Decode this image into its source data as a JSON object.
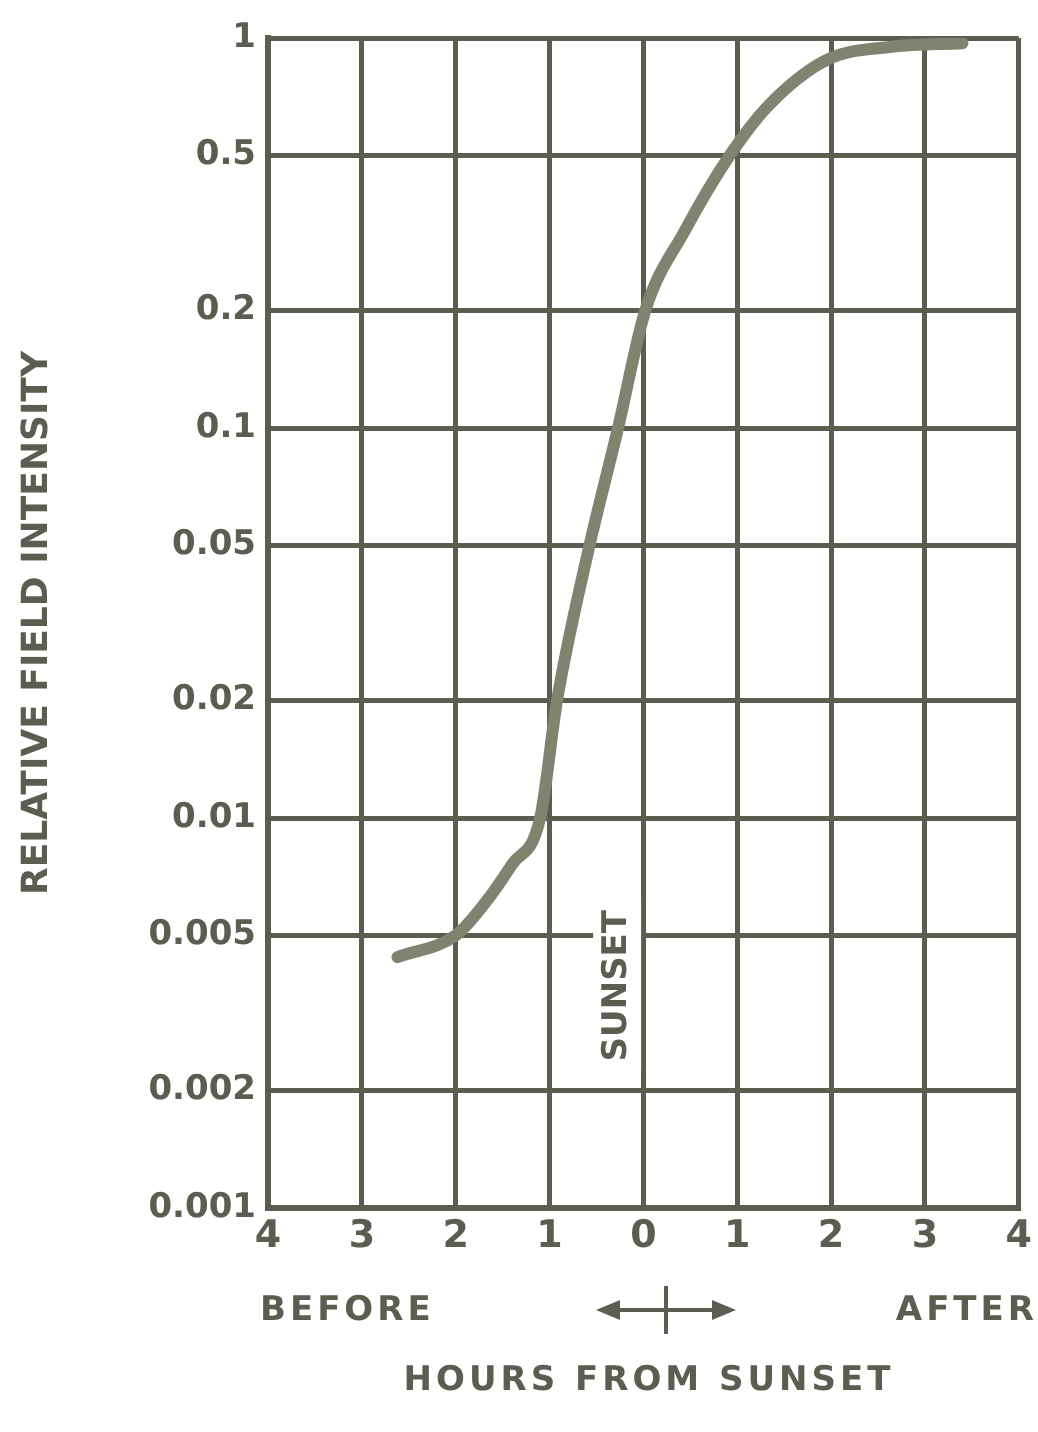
{
  "chart_data": {
    "type": "line",
    "ylabel": "RELATIVE FIELD INTENSITY",
    "xlabel": "HOURS FROM SUNSET",
    "annotations": [
      "BEFORE",
      "AFTER",
      "SUNSET"
    ],
    "x": [
      -2.62,
      -2,
      -1.7,
      -1.4,
      -1.1,
      -0.92,
      -0.6,
      -0.27,
      0.02,
      0.44,
      0.92,
      1.33,
      1.96,
      2.65,
      3.4
    ],
    "series": [
      {
        "color": "#7e8470",
        "values": [
          0.0044,
          0.005,
          0.006,
          0.0076,
          0.01,
          0.02,
          0.047,
          0.1,
          0.2,
          0.32,
          0.5,
          0.67,
          0.88,
          0.95,
          0.97
        ]
      }
    ],
    "log": "y",
    "xlim": [
      -4,
      4
    ],
    "ylim": [
      0.001,
      1
    ],
    "xticks": [
      {
        "value": -4,
        "label": "4"
      },
      {
        "value": -3,
        "label": "3"
      },
      {
        "value": -2,
        "label": "2"
      },
      {
        "value": -1,
        "label": "1"
      },
      0,
      1,
      2,
      3,
      4
    ],
    "yticks": [
      0.001,
      0.002,
      0.005,
      0.01,
      0.02,
      0.05,
      0.1,
      0.2,
      0.5,
      1
    ],
    "grid": true,
    "legend": false,
    "marker": "none",
    "line_style": "solid"
  }
}
